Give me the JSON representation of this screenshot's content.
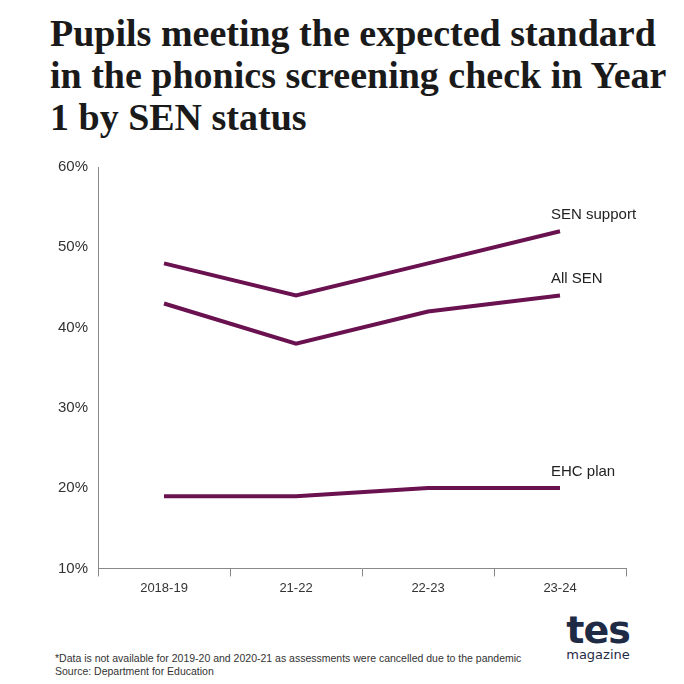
{
  "chart_data": {
    "type": "line",
    "title": "Pupils meeting the expected standard in the phonics screening check in Year 1 by SEN status",
    "categories": [
      "2018-19",
      "21-22",
      "22-23",
      "23-24"
    ],
    "series": [
      {
        "name": "SEN support",
        "color": "#6a1150",
        "values": [
          48,
          44,
          48,
          52
        ]
      },
      {
        "name": "All SEN",
        "color": "#6a1150",
        "values": [
          43,
          38,
          42,
          44
        ]
      },
      {
        "name": "EHC plan",
        "color": "#6a1150",
        "values": [
          19,
          19,
          20,
          20
        ]
      }
    ],
    "ylim": [
      10,
      60
    ],
    "yticks": [
      {
        "value": 10,
        "label": "10%"
      },
      {
        "value": 20,
        "label": "20%"
      },
      {
        "value": 30,
        "label": "30%"
      },
      {
        "value": 40,
        "label": "40%"
      },
      {
        "value": 50,
        "label": "50%"
      },
      {
        "value": 60,
        "label": "60%"
      }
    ],
    "grid": false,
    "footnotes": [
      "*Data is not available for 2019-20 and 2020-21 as assessments were cancelled due to the pandemic",
      "Source: Department for Education"
    ],
    "logo": {
      "text": "tes",
      "subtext": "magazine"
    }
  }
}
